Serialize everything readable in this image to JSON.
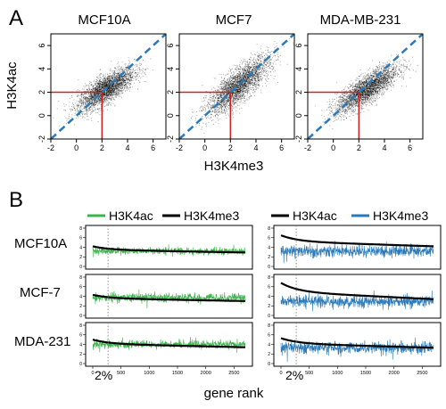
{
  "panel_a": {
    "label": "A",
    "xlabel": "H3K4me3",
    "ylabel": "H3K4ac",
    "xticks": [
      "-2",
      "0",
      "2",
      "4",
      "6"
    ],
    "yticks": [
      "-2",
      "0",
      "2",
      "4",
      "6"
    ],
    "colors": {
      "points": "#000000",
      "diagonal": "#2a7ab9",
      "threshold": "#cc2222"
    }
  },
  "panel_b": {
    "label": "B",
    "xlabel": "gene rank",
    "annotation": "2%",
    "legend_left": [
      {
        "name": "H3K4ac",
        "color": "#3cb44b"
      },
      {
        "name": "H3K4me3",
        "color": "#000000"
      }
    ],
    "legend_right": [
      {
        "name": "H3K4ac",
        "color": "#000000"
      },
      {
        "name": "H3K4me3",
        "color": "#2a7ab9"
      }
    ],
    "row_labels": [
      "MCF10A",
      "MCF-7",
      "MDA-231"
    ],
    "xticks": [
      "0",
      "500",
      "1000",
      "1500",
      "2000",
      "2500"
    ],
    "yticks": [
      "0",
      "2",
      "4",
      "6",
      "8"
    ]
  },
  "chart_data": [
    {
      "type": "scatter",
      "title": "MCF10A",
      "xlabel": "H3K4me3",
      "ylabel": "H3K4ac",
      "xlim": [
        -2,
        7
      ],
      "ylim": [
        -2,
        7
      ],
      "center": [
        2.3,
        2.3
      ],
      "spread": [
        1.1,
        0.9
      ],
      "correlation": 0.75,
      "reference_line": "y = x",
      "threshold": {
        "x": 2,
        "y": 2
      }
    },
    {
      "type": "scatter",
      "title": "MCF7",
      "xlabel": "H3K4me3",
      "ylabel": "H3K4ac",
      "xlim": [
        -2,
        7
      ],
      "ylim": [
        -2,
        7
      ],
      "center": [
        2.6,
        2.6
      ],
      "spread": [
        1.2,
        1.2
      ],
      "correlation": 0.8,
      "reference_line": "y = x",
      "threshold": {
        "x": 2,
        "y": 2
      }
    },
    {
      "type": "scatter",
      "title": "MDA-MB-231",
      "xlabel": "H3K4me3",
      "ylabel": "H3K4ac",
      "xlim": [
        -2,
        7
      ],
      "ylim": [
        -2,
        7
      ],
      "center": [
        2.6,
        2.3
      ],
      "spread": [
        1.2,
        1.0
      ],
      "correlation": 0.8,
      "reference_line": "y = x",
      "threshold": {
        "x": 2,
        "y": 2
      }
    },
    {
      "type": "line",
      "row": "MCF10A",
      "xlim": [
        0,
        2700
      ],
      "ylim": [
        0,
        8
      ],
      "series": [
        {
          "name": "H3K4ac",
          "color": "#3cb44b",
          "level": 3.2,
          "noise": 0.35
        },
        {
          "name": "H3K4me3",
          "color": "#000000",
          "start": 4.2,
          "end": 2.9
        }
      ]
    },
    {
      "type": "line",
      "row": "MCF-7",
      "xlim": [
        0,
        2700
      ],
      "ylim": [
        0,
        8
      ],
      "series": [
        {
          "name": "H3K4ac",
          "color": "#3cb44b",
          "level": 3.7,
          "noise": 0.45
        },
        {
          "name": "H3K4me3",
          "color": "#000000",
          "start": 4.3,
          "end": 3.0
        }
      ]
    },
    {
      "type": "line",
      "row": "MDA-231",
      "xlim": [
        0,
        2700
      ],
      "ylim": [
        0,
        8
      ],
      "series": [
        {
          "name": "H3K4ac",
          "color": "#3cb44b",
          "level": 4.0,
          "noise": 0.4
        },
        {
          "name": "H3K4me3",
          "color": "#000000",
          "start": 5.0,
          "end": 3.4
        }
      ]
    },
    {
      "type": "line",
      "row": "MCF10A",
      "xlim": [
        0,
        2700
      ],
      "ylim": [
        0,
        8
      ],
      "series": [
        {
          "name": "H3K4ac",
          "color": "#000000",
          "start": 6.5,
          "end": 4.2
        },
        {
          "name": "H3K4me3",
          "color": "#2a7ab9",
          "level": 3.2,
          "noise": 0.6
        }
      ]
    },
    {
      "type": "line",
      "row": "MCF-7",
      "xlim": [
        0,
        2700
      ],
      "ylim": [
        0,
        8
      ],
      "series": [
        {
          "name": "H3K4ac",
          "color": "#000000",
          "start": 6.8,
          "end": 3.4
        },
        {
          "name": "H3K4me3",
          "color": "#2a7ab9",
          "level": 2.9,
          "noise": 0.6
        }
      ]
    },
    {
      "type": "line",
      "row": "MDA-231",
      "xlim": [
        0,
        2700
      ],
      "ylim": [
        0,
        8
      ],
      "series": [
        {
          "name": "H3K4ac",
          "color": "#000000",
          "start": 5.3,
          "end": 3.3
        },
        {
          "name": "H3K4me3",
          "color": "#2a7ab9",
          "level": 3.3,
          "noise": 0.6
        }
      ]
    }
  ]
}
